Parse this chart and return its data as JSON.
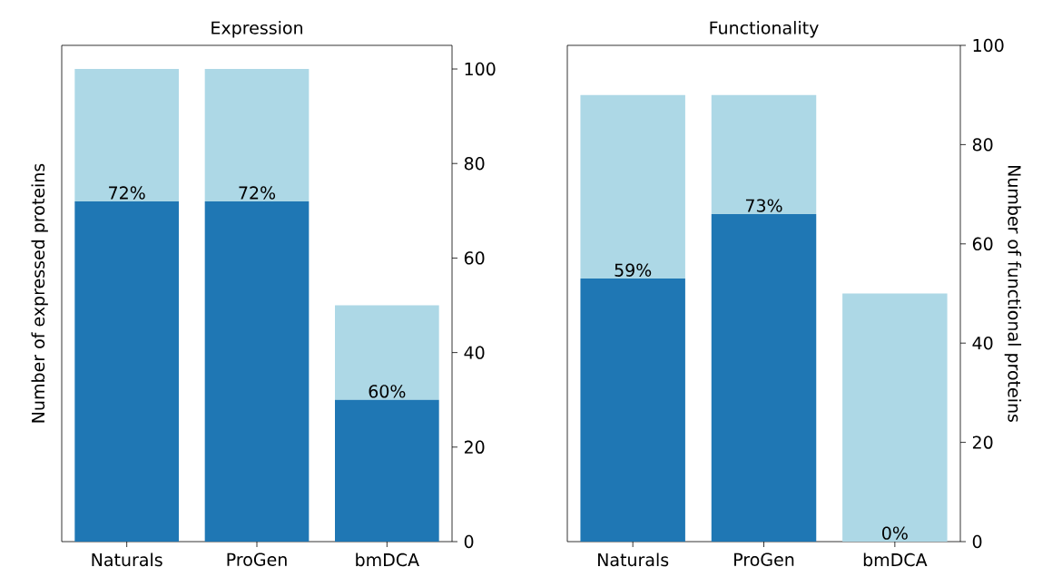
{
  "chart_data": [
    {
      "type": "bar",
      "title": "Expression",
      "ylabel": "Number of expressed proteins",
      "categories": [
        "Naturals",
        "ProGen",
        "bmDCA"
      ],
      "stacked": true,
      "ylim": [
        0,
        105
      ],
      "yticks": [
        0,
        20,
        40,
        60,
        80,
        100
      ],
      "series": [
        {
          "color": "#1f77b4",
          "values": [
            72,
            72,
            30
          ]
        },
        {
          "color": "#add8e6",
          "values": [
            28,
            28,
            20
          ]
        }
      ],
      "annotations": [
        {
          "text": "72%",
          "x": "Naturals",
          "y": 72
        },
        {
          "text": "72%",
          "x": "ProGen",
          "y": 72
        },
        {
          "text": "60%",
          "x": "bmDCA",
          "y": 30
        }
      ]
    },
    {
      "type": "bar",
      "title": "Functionality",
      "ylabel": "Number of functional proteins",
      "categories": [
        "Naturals",
        "ProGen",
        "bmDCA"
      ],
      "stacked": true,
      "ylim": [
        0,
        100
      ],
      "yticks": [
        0,
        20,
        40,
        60,
        80,
        100
      ],
      "series": [
        {
          "color": "#1f77b4",
          "values": [
            53,
            66,
            0
          ]
        },
        {
          "color": "#add8e6",
          "values": [
            37,
            24,
            50
          ]
        }
      ],
      "annotations": [
        {
          "text": "59%",
          "x": "Naturals",
          "y": 53
        },
        {
          "text": "73%",
          "x": "ProGen",
          "y": 66
        },
        {
          "text": "0%",
          "x": "bmDCA",
          "y": 0
        }
      ]
    }
  ]
}
